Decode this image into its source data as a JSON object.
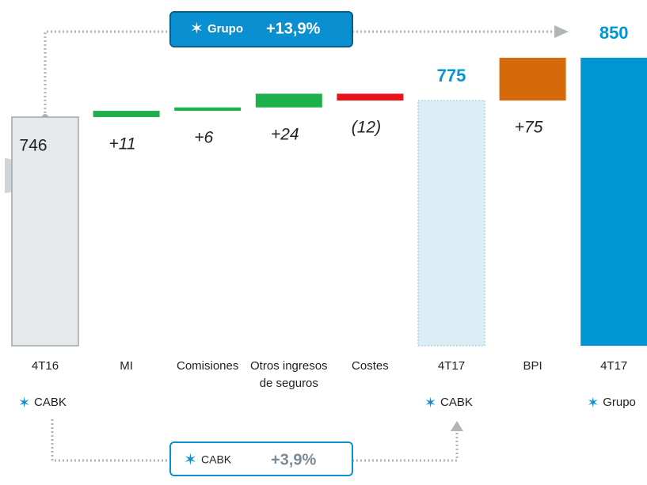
{
  "chart_data": {
    "type": "waterfall",
    "categories": [
      "4T16",
      "MI",
      "Comisiones",
      "Otros ingresos de seguros",
      "Costes",
      "4T17",
      "BPI",
      "4T17"
    ],
    "sublabels": [
      "CABK",
      null,
      null,
      null,
      null,
      "CABK",
      null,
      "Grupo"
    ],
    "values": [
      746,
      11,
      6,
      24,
      -12,
      775,
      75,
      850
    ],
    "value_labels": [
      "746",
      "+11",
      "+6",
      "+24",
      "(12)",
      "775",
      "+75",
      "850"
    ],
    "measure": [
      "total",
      "relative",
      "relative",
      "relative",
      "relative",
      "total",
      "relative",
      "total"
    ],
    "colors": [
      "#e6e9ec",
      "#1db04b",
      "#1db04b",
      "#1db04b",
      "#e8141b",
      "#dcedf5",
      "#d46a0a",
      "#0096d6"
    ],
    "ylim": [
      345,
      900
    ],
    "annotations": [
      {
        "name": "Grupo",
        "text": "+13,9%"
      },
      {
        "name": "CABK",
        "text": "+3,9%"
      }
    ]
  }
}
